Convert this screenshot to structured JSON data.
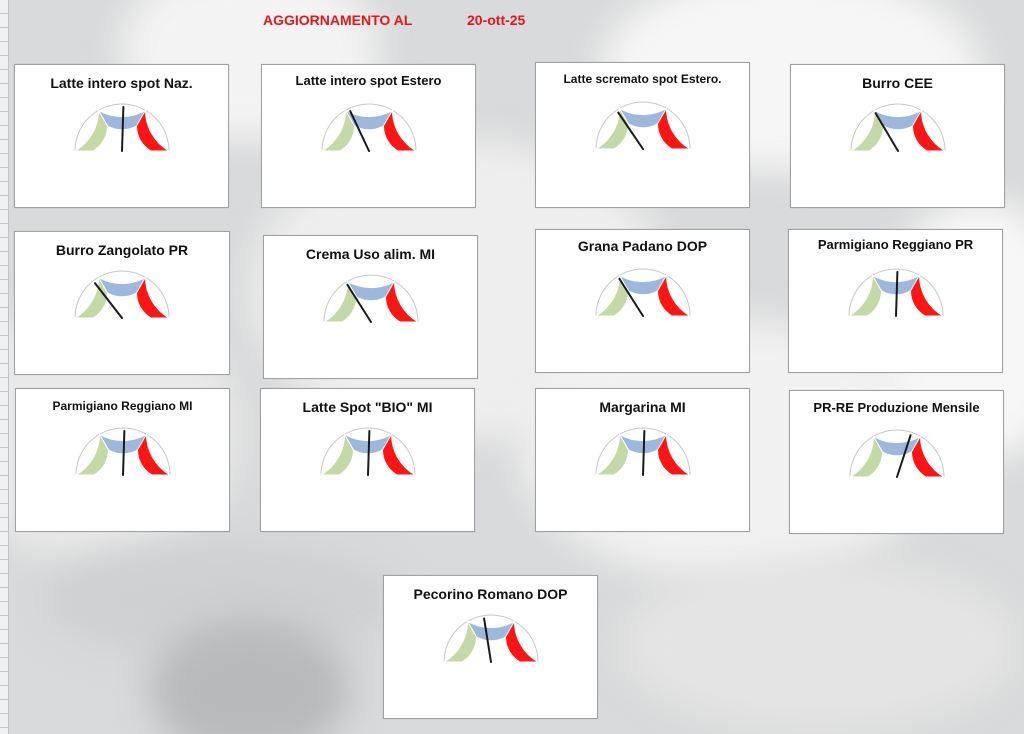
{
  "header": {
    "title": "AGGIORNAMENTO AL",
    "date": "20-ott-25"
  },
  "colors": {
    "green": "#c4d9a6",
    "blue": "#9db8dc",
    "red": "#ff1414",
    "title_red": "#e8151b"
  },
  "chart_data": [
    {
      "type": "gauge",
      "title": "Latte intero spot Naz.",
      "value": 0.51
    },
    {
      "type": "gauge",
      "title": "Latte intero spot Estero",
      "value": 0.36
    },
    {
      "type": "gauge",
      "title": "Latte scremato spot Estero.",
      "value": 0.31
    },
    {
      "type": "gauge",
      "title": "Burro CEE",
      "value": 0.33
    },
    {
      "type": "gauge",
      "title": "Burro Zangolato PR",
      "value": 0.29
    },
    {
      "type": "gauge",
      "title": "Crema Uso alim. MI",
      "value": 0.32
    },
    {
      "type": "gauge",
      "title": "Grana Padano DOP",
      "value": 0.32
    },
    {
      "type": "gauge",
      "title": "Parmigiano Reggiano PR",
      "value": 0.51
    },
    {
      "type": "gauge",
      "title": "Parmigiano Reggiano MI",
      "value": 0.51
    },
    {
      "type": "gauge",
      "title": "Latte Spot \"BIO\" MI",
      "value": 0.51
    },
    {
      "type": "gauge",
      "title": "Margarina MI",
      "value": 0.51
    },
    {
      "type": "gauge",
      "title": "PR-RE Produzione Mensile",
      "value": 0.6
    },
    {
      "type": "gauge",
      "title": "Pecorino Romano DOP",
      "value": 0.45
    }
  ]
}
